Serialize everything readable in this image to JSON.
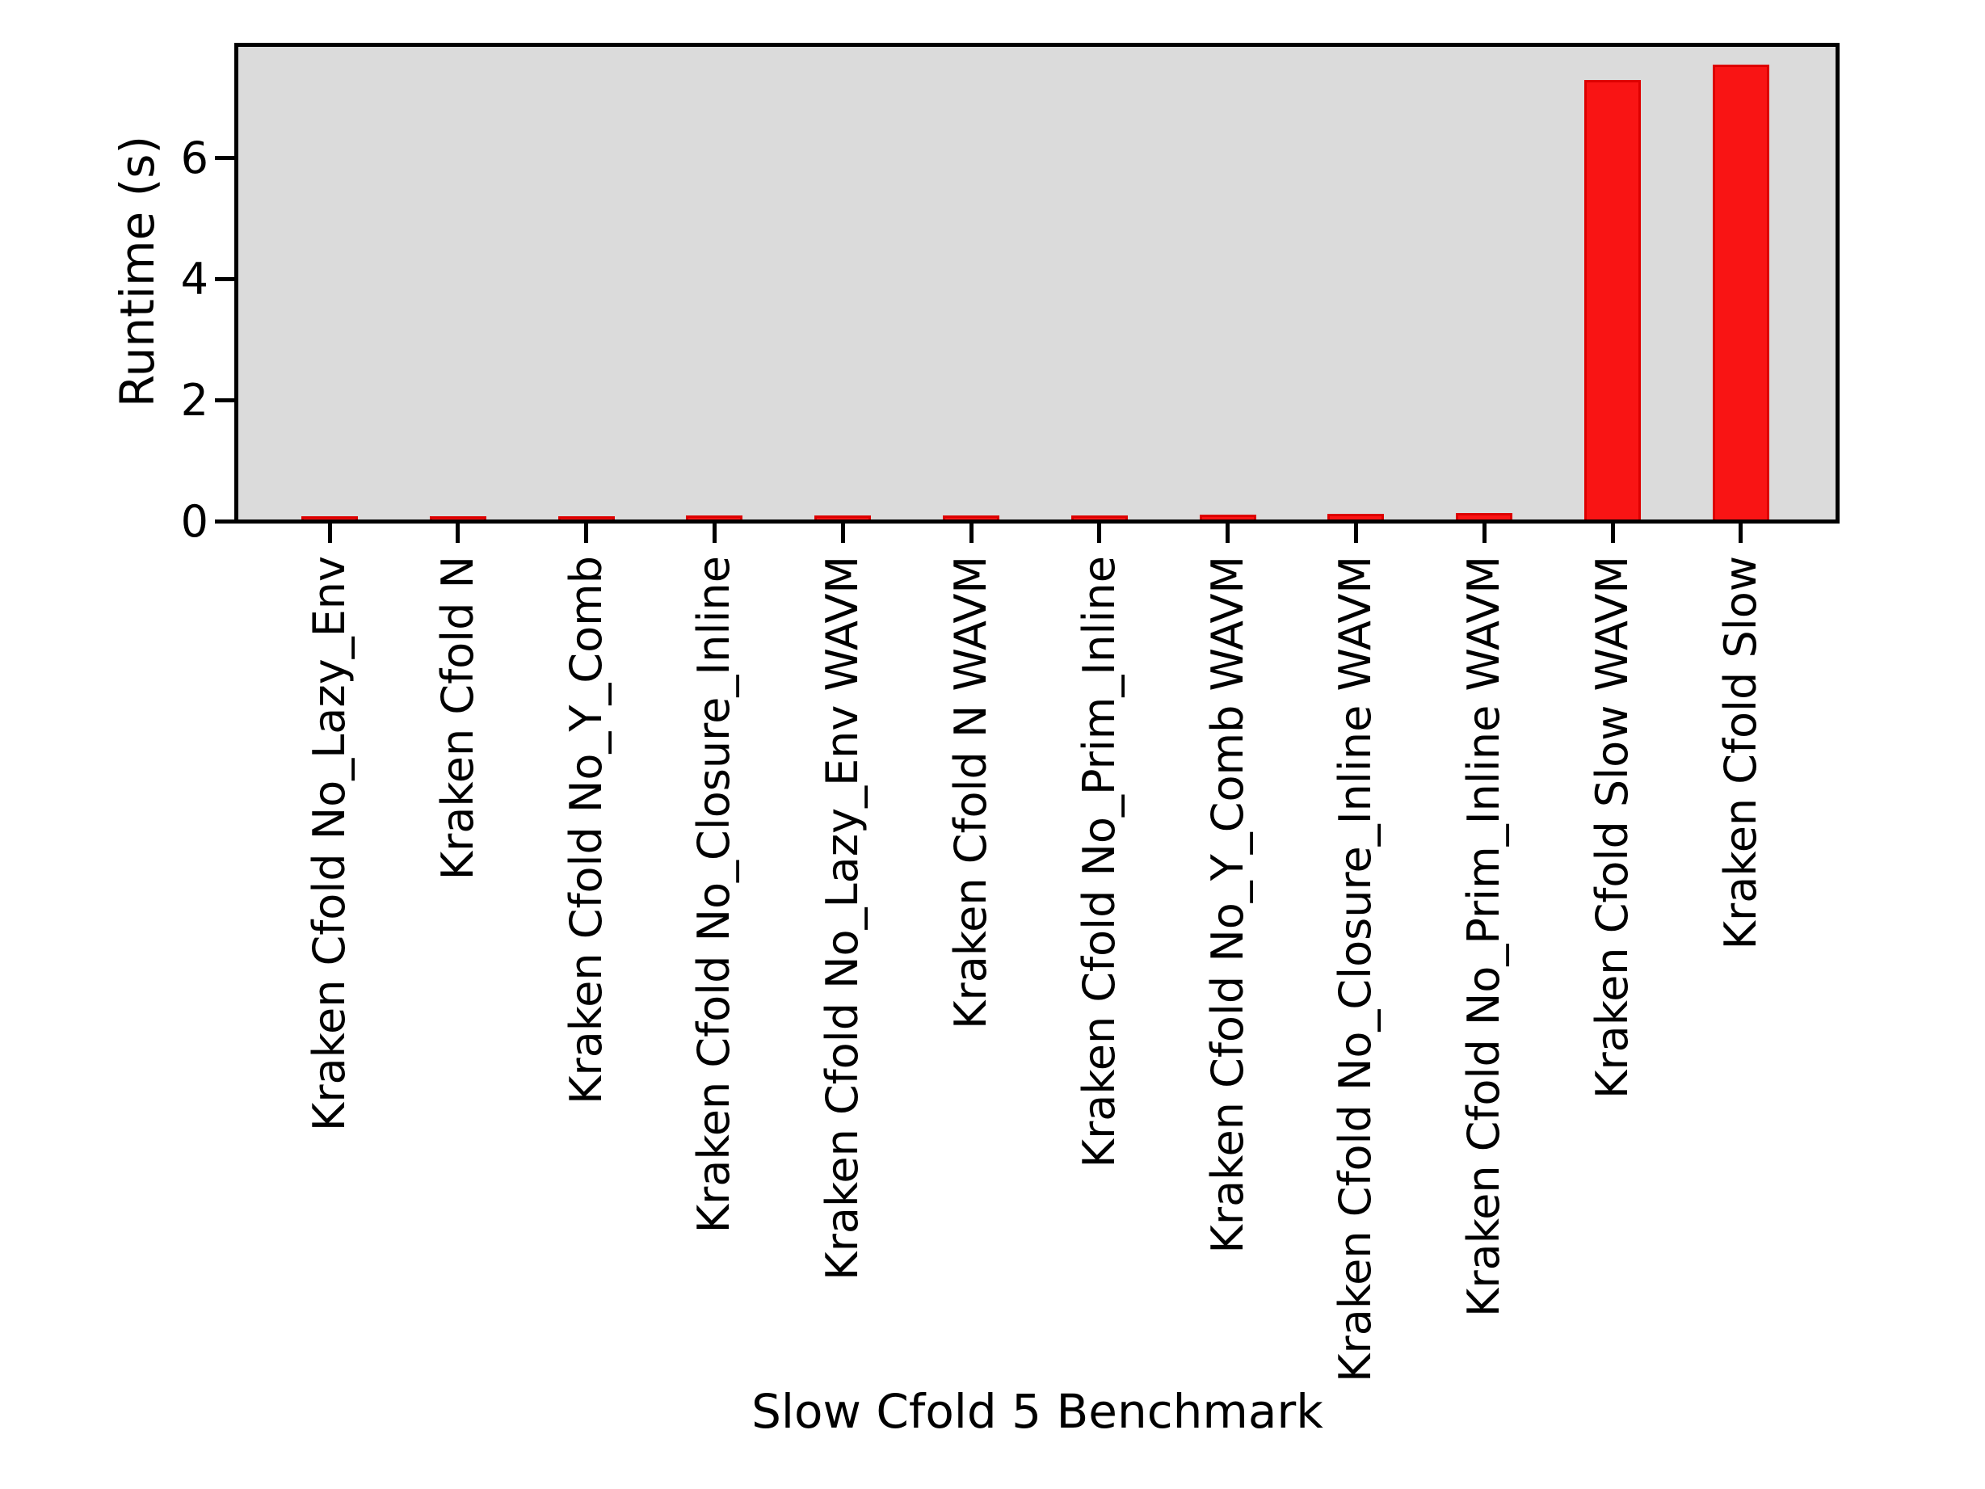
{
  "figure": {
    "background": "#ffffff",
    "plot_background": "#dbdbdb",
    "spine_color": "#000000"
  },
  "chart_data": {
    "type": "bar",
    "title": "",
    "xlabel": "Slow Cfold 5 Benchmark",
    "ylabel": "Runtime (s)",
    "categories": [
      "Kraken Cfold No_Lazy_Env",
      "Kraken Cfold N",
      "Kraken Cfold No_Y_Comb",
      "Kraken Cfold No_Closure_Inline",
      "Kraken Cfold No_Lazy_Env WAVM",
      "Kraken Cfold N WAVM",
      "Kraken Cfold No_Prim_Inline",
      "Kraken Cfold No_Y_Comb WAVM",
      "Kraken Cfold No_Closure_Inline WAVM",
      "Kraken Cfold No_Prim_Inline WAVM",
      "Kraken Cfold Slow WAVM",
      "Kraken Cfold Slow"
    ],
    "values": [
      0.05,
      0.05,
      0.05,
      0.06,
      0.06,
      0.07,
      0.07,
      0.08,
      0.09,
      0.11,
      7.25,
      7.5
    ],
    "bar_color": "#f91414",
    "bar_edge_color": "#dd0000",
    "yticks": [
      0,
      2,
      4,
      6
    ],
    "ytick_labels": [
      "0",
      "2",
      "4",
      "6"
    ],
    "ylim": [
      0,
      7.8
    ],
    "grid": false,
    "legend": {
      "visible": true,
      "position": "upper right",
      "entries": []
    }
  }
}
